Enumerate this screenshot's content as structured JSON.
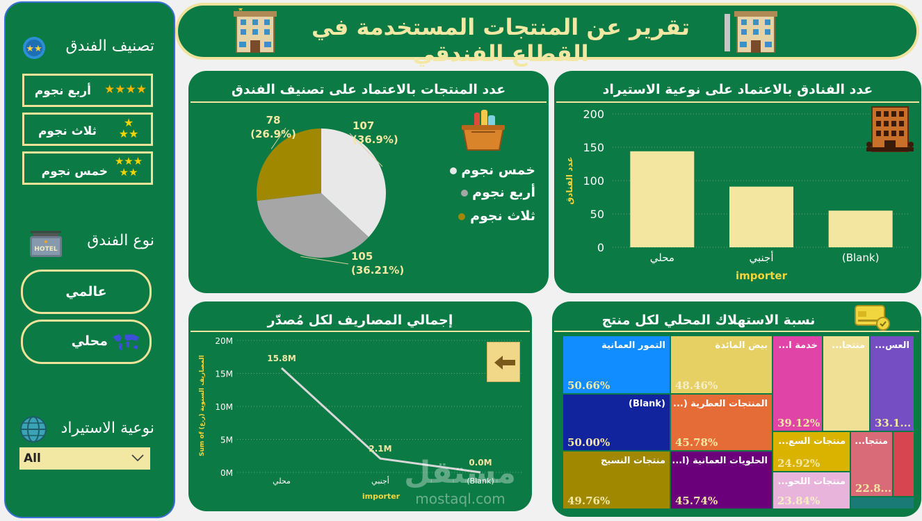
{
  "header": {
    "title": "تقرير عن المنتجات المستخدمة في القطاع الفندقي"
  },
  "sidebar": {
    "rating_title": "تصنيف الفندق",
    "rating_items": [
      {
        "label": "أربع نجوم",
        "stars": 4
      },
      {
        "label": "ثلاث نجوم",
        "stars": 3
      },
      {
        "label": "خمس نجوم",
        "stars": 5
      }
    ],
    "type_title": "نوع الفندق",
    "hotel_sign": "HOTEL",
    "type_items": [
      "عالمي",
      "محلي"
    ],
    "import_title": "نوعية الاستيراد",
    "import_select_value": "All"
  },
  "pie_panel": {
    "title": "عدد المنتجات بالاعتماد على تصنيف الفندق",
    "legend": [
      {
        "label": "خمس نجوم",
        "color": "#e8e8e8"
      },
      {
        "label": "أربع نجوم",
        "color": "#a6a6a6"
      },
      {
        "label": "ثلاث نجوم",
        "color": "#a08800"
      }
    ]
  },
  "bar_panel": {
    "title": "عدد الفنادق بالاعتماد على نوعية الاستيراد"
  },
  "line_panel": {
    "title": "إجمالي المصاريف لكل مُصدّر"
  },
  "treemap_panel": {
    "title": "نسبة الاستهلاك المحلي لكل منتج",
    "tiles": [
      {
        "name": "التمور العمانية",
        "pct": "50.66%",
        "bg": "#118dff",
        "pc_color": "#f3e7a4"
      },
      {
        "name": "بيض المائدة",
        "pct": "48.46%",
        "bg": "#e6cf63",
        "pc_color": "#f3e7a4"
      },
      {
        "name": "خدمة ا...",
        "pct": "39.12%",
        "bg": "#e044a7",
        "pc_color": "#f3e7a4"
      },
      {
        "name": "منتجا...",
        "pct": "",
        "bg": "#f0e096",
        "pc_color": "#f3e7a4"
      },
      {
        "name": "العس...",
        "pct": "33.1...",
        "bg": "#744ec2",
        "pc_color": "#f3e7a4"
      },
      {
        "name": "(Blank)",
        "pct": "50.00%",
        "bg": "#12239e",
        "pc_color": "#f3e7a4"
      },
      {
        "name": "المنتجات العطرية (...",
        "pct": "45.78%",
        "bg": "#e66c37",
        "pc_color": "#f3e7a4"
      },
      {
        "name": "منتجات السع...",
        "pct": "24.92%",
        "bg": "#d9b300",
        "pc_color": "#f3e7a4"
      },
      {
        "name": "منتجا...",
        "pct": "22.8...",
        "bg": "#d64550",
        "pc_color": "#f3e7a4"
      },
      {
        "name": "منتجات النسيج",
        "pct": "49.76%",
        "bg": "#a08800",
        "pc_color": "#f3e7a4"
      },
      {
        "name": "الحلويات العمانية (ا...",
        "pct": "45.74%",
        "bg": "#6b007b",
        "pc_color": "#f3e7a4"
      },
      {
        "name": "منتجات اللحو...",
        "pct": "23.84%",
        "bg": "#e8b4dc",
        "pc_color": "#f3e7a4"
      }
    ]
  },
  "chart_data": [
    {
      "type": "pie",
      "title": "عدد المنتجات بالاعتماد على تصنيف الفندق",
      "categories": [
        "خمس نجوم",
        "أربع نجوم",
        "ثلاث نجوم"
      ],
      "values": [
        107,
        105,
        78
      ],
      "value_labels": [
        "107",
        "105",
        "78"
      ],
      "percent_labels": [
        "(36.9%)",
        "(36.21%)",
        "(26.9%)"
      ],
      "colors": [
        "#e8e8e8",
        "#a6a6a6",
        "#a08800"
      ],
      "legend": "right"
    },
    {
      "type": "bar",
      "title": "عدد الفنادق بالاعتماد على نوعية الاستيراد",
      "categories": [
        "محلي",
        "أجنبي",
        "(Blank)"
      ],
      "values": [
        144,
        91,
        55
      ],
      "xlabel": "importer",
      "ylabel": "عدد الفنادق",
      "ylim": [
        0,
        200
      ],
      "yticks": [
        0,
        50,
        100,
        150,
        200
      ],
      "bar_color": "#f2e6a0",
      "grid": true
    },
    {
      "type": "line",
      "title": "إجمالي المصاريف لكل مُصدّر",
      "categories": [
        "محلي",
        "أجنبي",
        "(Blank)"
      ],
      "values": [
        15.8,
        2.1,
        0.0
      ],
      "value_labels": [
        "15.8M",
        "2.1M",
        "0.0M"
      ],
      "xlabel": "importer",
      "ylabel": "Sum of المصاريف السنوية (ر.ع)",
      "ylim": [
        0,
        20
      ],
      "yticks": [
        "0M",
        "5M",
        "10M",
        "15M",
        "20M"
      ],
      "line_color": "#d8d8d8",
      "grid": true
    }
  ],
  "watermark": {
    "brand": "مستقل",
    "site": "mostaql.com"
  }
}
